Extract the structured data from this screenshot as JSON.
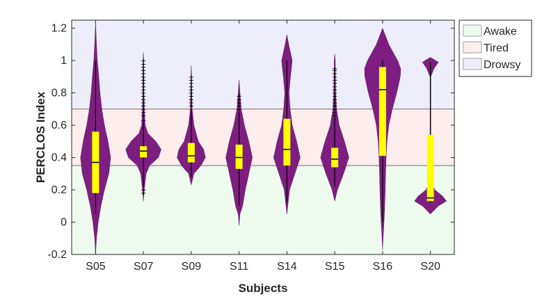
{
  "chart_data": {
    "type": "violin",
    "title": "",
    "xlabel": "Subjects",
    "ylabel": "PERCLOS Index",
    "ylim": [
      -0.2,
      1.25
    ],
    "yticks": [
      -0.2,
      0,
      0.2,
      0.4,
      0.6,
      0.8,
      1,
      1.2
    ],
    "ytick_labels": [
      "-0.2",
      "0",
      "0.2",
      "0.4",
      "0.6",
      "0.8",
      "1",
      "1.2"
    ],
    "grid": false,
    "legend_position": "outside-top-right",
    "categories": [
      "S05",
      "S07",
      "S09",
      "S11",
      "S14",
      "S15",
      "S16",
      "S20"
    ],
    "bands": [
      {
        "name": "Awake",
        "from": -0.2,
        "to": 0.35,
        "color": "#eefaee"
      },
      {
        "name": "Tired",
        "from": 0.35,
        "to": 0.7,
        "color": "#fdeeee"
      },
      {
        "name": "Drowsy",
        "from": 0.7,
        "to": 1.25,
        "color": "#eeeefa"
      }
    ],
    "threshold_lines": [
      0.35,
      0.7
    ],
    "colors": {
      "violin": "#7e1e80",
      "box": "#ffff00",
      "whisker": "#000000",
      "outlier": "#000000"
    },
    "violins": [
      {
        "name": "S05",
        "profile": [
          [
            -0.2,
            0
          ],
          [
            -0.1,
            0.05
          ],
          [
            0,
            0.15
          ],
          [
            0.1,
            0.3
          ],
          [
            0.2,
            0.5
          ],
          [
            0.3,
            0.75
          ],
          [
            0.4,
            0.85
          ],
          [
            0.5,
            0.7
          ],
          [
            0.6,
            0.5
          ],
          [
            0.7,
            0.35
          ],
          [
            0.8,
            0.25
          ],
          [
            0.9,
            0.18
          ],
          [
            1.0,
            0.1
          ],
          [
            1.1,
            0.05
          ],
          [
            1.24,
            0
          ]
        ],
        "q1": 0.18,
        "median": 0.37,
        "q3": 0.56,
        "whisker_low": 0.05,
        "whisker_high": 1.0,
        "outliers": []
      },
      {
        "name": "S07",
        "profile": [
          [
            0.13,
            0
          ],
          [
            0.2,
            0.05
          ],
          [
            0.3,
            0.15
          ],
          [
            0.35,
            0.35
          ],
          [
            0.4,
            0.85
          ],
          [
            0.45,
            1.0
          ],
          [
            0.5,
            0.7
          ],
          [
            0.55,
            0.25
          ],
          [
            0.6,
            0.1
          ],
          [
            0.7,
            0.05
          ],
          [
            0.8,
            0.03
          ],
          [
            0.9,
            0.03
          ],
          [
            1.0,
            0.02
          ],
          [
            1.05,
            0
          ]
        ],
        "q1": 0.4,
        "median": 0.44,
        "q3": 0.47,
        "whisker_low": 0.22,
        "whisker_high": 0.62,
        "outliers": [
          0.18,
          0.2,
          0.63,
          0.66,
          0.68,
          0.7,
          0.72,
          0.74,
          0.76,
          0.78,
          0.8,
          0.82,
          0.84,
          0.86,
          0.88,
          0.9,
          0.92,
          0.94,
          0.96,
          0.98,
          1.0
        ]
      },
      {
        "name": "S09",
        "profile": [
          [
            0.23,
            0
          ],
          [
            0.3,
            0.15
          ],
          [
            0.35,
            0.55
          ],
          [
            0.4,
            0.8
          ],
          [
            0.45,
            0.7
          ],
          [
            0.5,
            0.4
          ],
          [
            0.6,
            0.15
          ],
          [
            0.7,
            0.05
          ],
          [
            0.8,
            0.03
          ],
          [
            0.9,
            0.02
          ],
          [
            0.97,
            0
          ]
        ],
        "q1": 0.37,
        "median": 0.41,
        "q3": 0.49,
        "whisker_low": 0.28,
        "whisker_high": 0.7,
        "outliers": [
          0.72,
          0.74,
          0.76,
          0.78,
          0.8,
          0.82,
          0.84,
          0.86,
          0.88,
          0.9
        ]
      },
      {
        "name": "S11",
        "profile": [
          [
            -0.02,
            0
          ],
          [
            0.05,
            0.05
          ],
          [
            0.1,
            0.2
          ],
          [
            0.2,
            0.35
          ],
          [
            0.3,
            0.55
          ],
          [
            0.4,
            0.75
          ],
          [
            0.5,
            0.55
          ],
          [
            0.6,
            0.3
          ],
          [
            0.7,
            0.12
          ],
          [
            0.8,
            0.05
          ],
          [
            0.88,
            0
          ]
        ],
        "q1": 0.33,
        "median": 0.4,
        "q3": 0.48,
        "whisker_low": 0.1,
        "whisker_high": 0.68,
        "outliers": [
          0.7,
          0.72,
          0.74,
          0.76,
          0.78
        ]
      },
      {
        "name": "S14",
        "profile": [
          [
            0.05,
            0
          ],
          [
            0.1,
            0.05
          ],
          [
            0.2,
            0.15
          ],
          [
            0.3,
            0.45
          ],
          [
            0.4,
            0.75
          ],
          [
            0.5,
            0.55
          ],
          [
            0.6,
            0.3
          ],
          [
            0.7,
            0.18
          ],
          [
            0.8,
            0.12
          ],
          [
            0.9,
            0.2
          ],
          [
            1.0,
            0.3
          ],
          [
            1.1,
            0.1
          ],
          [
            1.16,
            0
          ]
        ],
        "q1": 0.35,
        "median": 0.45,
        "q3": 0.64,
        "whisker_low": 0.12,
        "whisker_high": 1.0,
        "outliers": []
      },
      {
        "name": "S15",
        "profile": [
          [
            0.13,
            0
          ],
          [
            0.2,
            0.15
          ],
          [
            0.3,
            0.5
          ],
          [
            0.4,
            0.8
          ],
          [
            0.5,
            0.55
          ],
          [
            0.6,
            0.25
          ],
          [
            0.7,
            0.1
          ],
          [
            0.8,
            0.05
          ],
          [
            0.9,
            0.04
          ],
          [
            1.0,
            0.03
          ],
          [
            1.04,
            0
          ]
        ],
        "q1": 0.34,
        "median": 0.39,
        "q3": 0.46,
        "whisker_low": 0.22,
        "whisker_high": 0.65,
        "outliers": [
          0.66,
          0.68,
          0.7,
          0.72,
          0.74,
          0.76,
          0.78,
          0.8,
          0.82,
          0.84,
          0.86,
          0.88,
          0.9,
          0.92,
          0.94,
          0.95
        ]
      },
      {
        "name": "S16",
        "profile": [
          [
            -0.17,
            0
          ],
          [
            -0.1,
            0.03
          ],
          [
            0,
            0.08
          ],
          [
            0.1,
            0.12
          ],
          [
            0.2,
            0.15
          ],
          [
            0.3,
            0.17
          ],
          [
            0.4,
            0.2
          ],
          [
            0.5,
            0.25
          ],
          [
            0.6,
            0.35
          ],
          [
            0.7,
            0.55
          ],
          [
            0.8,
            0.8
          ],
          [
            0.9,
            1.0
          ],
          [
            0.95,
            1.02
          ],
          [
            1.0,
            0.85
          ],
          [
            1.1,
            0.35
          ],
          [
            1.2,
            0
          ]
        ],
        "q1": 0.41,
        "median": 0.82,
        "q3": 0.96,
        "whisker_low": 0.0,
        "whisker_high": 1.0,
        "outliers": []
      },
      {
        "name": "S20",
        "profile": [
          [
            0.05,
            0
          ],
          [
            0.1,
            0.45
          ],
          [
            0.13,
            0.9
          ],
          [
            0.16,
            0.7
          ],
          [
            0.2,
            0.25
          ],
          [
            0.25,
            0.05
          ],
          [
            0.3,
            0.02
          ],
          [
            0.9,
            0.02
          ],
          [
            0.95,
            0.2
          ],
          [
            0.99,
            0.45
          ],
          [
            1.02,
            0
          ]
        ],
        "q1": 0.13,
        "median": 0.15,
        "q3": 0.54,
        "whisker_low": 0.12,
        "whisker_high": 0.99,
        "outliers": []
      }
    ]
  }
}
